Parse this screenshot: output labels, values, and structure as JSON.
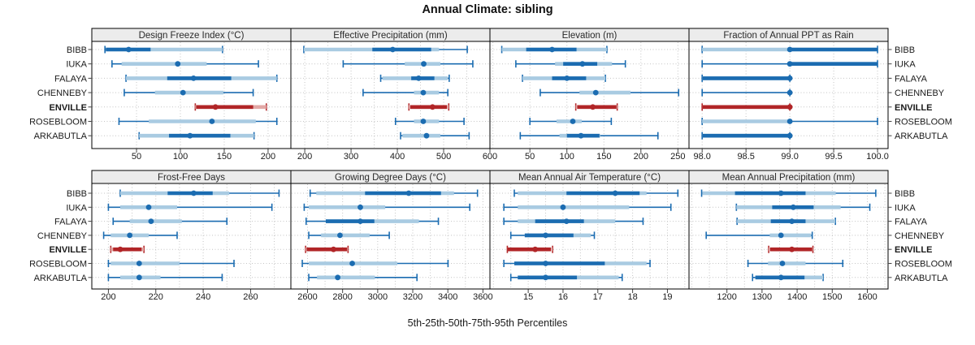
{
  "title": "Annual Climate: sibling",
  "caption": "5th-25th-50th-75th-95th Percentiles",
  "stations": [
    "BIBB",
    "IUKA",
    "FALAYA",
    "CHENNEBY",
    "ENVILLE",
    "ROSEBLOOM",
    "ARKABUTLA"
  ],
  "highlight_station": "ENVILLE",
  "colors": {
    "dark_blue": "#1b6cb1",
    "light_blue": "#a9cbe2",
    "dark_red": "#b12527",
    "light_red": "#e2a8a6",
    "grid_dots": "#c4c4c4",
    "strip_bg": "#ececec",
    "panel_border": "#000000",
    "tick": "#444444",
    "text": "#1a1a1a"
  },
  "chart_data": [
    {
      "type": "interval-dotplot",
      "title": "Design Freeze Index (°C)",
      "xlim": [
        -1,
        226
      ],
      "ticks": [
        50,
        100,
        150,
        200
      ],
      "tick_decimals": 0,
      "grid_step": 50,
      "rows": [
        {
          "station": "BIBB",
          "p": [
            14,
            15,
            41,
            66,
            148
          ],
          "band": [
            15,
            148
          ]
        },
        {
          "station": "IUKA",
          "p": [
            22,
            33,
            97,
            130,
            189
          ],
          "band": null
        },
        {
          "station": "FALAYA",
          "p": [
            38,
            85,
            115,
            158,
            210
          ],
          "band": [
            38,
            210
          ]
        },
        {
          "station": "CHENNEBY",
          "p": [
            36,
            71,
            103,
            149,
            183
          ],
          "band": null
        },
        {
          "station": "ENVILLE",
          "p": [
            117,
            118,
            140,
            183,
            198
          ],
          "band": [
            117,
            198
          ]
        },
        {
          "station": "ROSEBLOOM",
          "p": [
            30,
            64,
            136,
            186,
            210
          ],
          "band": null
        },
        {
          "station": "ARKABUTLA",
          "p": [
            53,
            87,
            111,
            157,
            184
          ],
          "band": [
            53,
            184
          ]
        }
      ]
    },
    {
      "type": "interval-dotplot",
      "title": "Effective Precipitation (mm)",
      "xlim": [
        170,
        600
      ],
      "ticks": [
        200,
        300,
        400,
        500,
        600
      ],
      "tick_decimals": 0,
      "grid_step": 50,
      "rows": [
        {
          "station": "BIBB",
          "p": [
            198,
            346,
            390,
            473,
            551
          ],
          "band": [
            198,
            490
          ]
        },
        {
          "station": "IUKA",
          "p": [
            283,
            416,
            457,
            493,
            563
          ],
          "band": null
        },
        {
          "station": "FALAYA",
          "p": [
            364,
            430,
            446,
            480,
            512
          ],
          "band": [
            368,
            509
          ]
        },
        {
          "station": "CHENNEBY",
          "p": [
            326,
            436,
            456,
            490,
            509
          ],
          "band": null
        },
        {
          "station": "ENVILLE",
          "p": [
            425,
            428,
            476,
            507,
            511
          ],
          "band": [
            425,
            511
          ]
        },
        {
          "station": "ROSEBLOOM",
          "p": [
            396,
            436,
            456,
            490,
            544
          ],
          "band": null
        },
        {
          "station": "ARKABUTLA",
          "p": [
            407,
            411,
            463,
            493,
            555
          ],
          "band": null
        }
      ]
    },
    {
      "type": "interval-dotplot",
      "title": "Elevation (m)",
      "xlim": [
        -4,
        265
      ],
      "ticks": [
        50,
        100,
        150,
        200,
        250
      ],
      "tick_decimals": 0,
      "grid_step": 50,
      "rows": [
        {
          "station": "BIBB",
          "p": [
            12,
            45,
            80,
            113,
            154
          ],
          "band": [
            12,
            154
          ]
        },
        {
          "station": "IUKA",
          "p": [
            31,
            95,
            121,
            141,
            179
          ],
          "band": [
            84,
            161
          ]
        },
        {
          "station": "FALAYA",
          "p": [
            40,
            80,
            100,
            126,
            152
          ],
          "band": [
            40,
            152
          ]
        },
        {
          "station": "CHENNEBY",
          "p": [
            64,
            117,
            139,
            186,
            251
          ],
          "band": null
        },
        {
          "station": "ENVILLE",
          "p": [
            112,
            114,
            135,
            167,
            168
          ],
          "band": [
            112,
            168
          ]
        },
        {
          "station": "ROSEBLOOM",
          "p": [
            50,
            86,
            108,
            120,
            160
          ],
          "band": null
        },
        {
          "station": "ARKABUTLA",
          "p": [
            37,
            100,
            119,
            144,
            223
          ],
          "band": [
            90,
            145
          ]
        }
      ]
    },
    {
      "type": "interval-dotplot",
      "title": "Fraction of Annual PPT as Rain",
      "xlim": [
        97.85,
        100.12
      ],
      "ticks": [
        98.0,
        98.5,
        99.0,
        99.5,
        100.0
      ],
      "tick_decimals": 1,
      "grid_step": 0.5,
      "rows": [
        {
          "station": "BIBB",
          "p": [
            98.0,
            99.0,
            99.0,
            100.0,
            100.0
          ],
          "band": [
            98.0,
            100.0
          ]
        },
        {
          "station": "IUKA",
          "p": [
            98.0,
            99.0,
            99.0,
            100.0,
            100.0
          ],
          "band": [
            99.0,
            100.0
          ]
        },
        {
          "station": "FALAYA",
          "p": [
            98.0,
            98.0,
            99.0,
            99.0,
            99.0
          ],
          "band": [
            98.0,
            99.0
          ]
        },
        {
          "station": "CHENNEBY",
          "p": [
            98.0,
            99.0,
            99.0,
            99.0,
            99.0
          ],
          "band": null
        },
        {
          "station": "ENVILLE",
          "p": [
            98.0,
            98.0,
            99.0,
            99.0,
            99.0
          ],
          "band": [
            98.0,
            99.0
          ]
        },
        {
          "station": "ROSEBLOOM",
          "p": [
            98.0,
            98.0,
            99.0,
            99.0,
            100.0
          ],
          "band": null
        },
        {
          "station": "ARKABUTLA",
          "p": [
            98.0,
            98.0,
            99.0,
            99.0,
            99.0
          ],
          "band": [
            98.0,
            99.0
          ]
        }
      ]
    },
    {
      "type": "interval-dotplot",
      "title": "Frost-Free Days",
      "xlim": [
        193,
        277
      ],
      "ticks": [
        200,
        220,
        240,
        260
      ],
      "tick_decimals": 0,
      "grid_step": 10,
      "rows": [
        {
          "station": "BIBB",
          "p": [
            205,
            225,
            236,
            244,
            272
          ],
          "band": [
            205,
            251
          ]
        },
        {
          "station": "IUKA",
          "p": [
            200,
            205,
            217,
            229,
            269
          ],
          "band": null
        },
        {
          "station": "FALAYA",
          "p": [
            202,
            209,
            218,
            231,
            250
          ],
          "band": null
        },
        {
          "station": "CHENNEBY",
          "p": [
            198,
            201,
            209,
            217,
            229
          ],
          "band": null
        },
        {
          "station": "ENVILLE",
          "p": [
            201,
            202,
            205,
            214,
            215
          ],
          "band": [
            201,
            215
          ]
        },
        {
          "station": "ROSEBLOOM",
          "p": [
            200,
            201,
            213,
            230,
            253
          ],
          "band": null
        },
        {
          "station": "ARKABUTLA",
          "p": [
            200,
            205,
            213,
            222,
            248
          ],
          "band": null
        }
      ]
    },
    {
      "type": "interval-dotplot",
      "title": "Growing Degree Days (°C)",
      "xlim": [
        2505,
        3640
      ],
      "ticks": [
        2600,
        2800,
        3000,
        3200,
        3400,
        3600
      ],
      "tick_decimals": 0,
      "grid_step": 100,
      "rows": [
        {
          "station": "BIBB",
          "p": [
            2615,
            2928,
            3177,
            3361,
            3569
          ],
          "band": [
            2650,
            3435
          ]
        },
        {
          "station": "IUKA",
          "p": [
            2581,
            2607,
            2901,
            3043,
            3525
          ],
          "band": null
        },
        {
          "station": "FALAYA",
          "p": [
            2592,
            2704,
            2901,
            2981,
            3346
          ],
          "band": [
            2704,
            3235
          ]
        },
        {
          "station": "CHENNEBY",
          "p": [
            2607,
            2677,
            2785,
            2954,
            3066
          ],
          "band": null
        },
        {
          "station": "ENVILLE",
          "p": [
            2589,
            2595,
            2748,
            2826,
            2831
          ],
          "band": [
            2589,
            2831
          ]
        },
        {
          "station": "ROSEBLOOM",
          "p": [
            2570,
            2607,
            2855,
            3112,
            3401
          ],
          "band": null
        },
        {
          "station": "ARKABUTLA",
          "p": [
            2607,
            2654,
            2772,
            2984,
            3224
          ],
          "band": null
        }
      ]
    },
    {
      "type": "interval-dotplot",
      "title": "Mean Annual Air Temperature (°C)",
      "xlim": [
        13.9,
        19.62
      ],
      "ticks": [
        15,
        16,
        17,
        18,
        19
      ],
      "tick_decimals": 0,
      "grid_step": 0.5,
      "rows": [
        {
          "station": "BIBB",
          "p": [
            14.6,
            16.1,
            17.5,
            18.2,
            19.3
          ],
          "band": [
            14.7,
            18.4
          ]
        },
        {
          "station": "IUKA",
          "p": [
            14.3,
            14.7,
            16.0,
            17.9,
            19.1
          ],
          "band": null
        },
        {
          "station": "FALAYA",
          "p": [
            14.3,
            15.2,
            16.1,
            16.6,
            18.3
          ],
          "band": [
            14.7,
            17.5
          ]
        },
        {
          "station": "CHENNEBY",
          "p": [
            14.5,
            14.9,
            15.5,
            16.3,
            16.9
          ],
          "band": [
            14.9,
            16.8
          ]
        },
        {
          "station": "ENVILLE",
          "p": [
            14.4,
            14.4,
            15.2,
            15.65,
            15.7
          ],
          "band": [
            14.4,
            15.7
          ]
        },
        {
          "station": "ROSEBLOOM",
          "p": [
            14.3,
            14.6,
            15.5,
            17.2,
            18.5
          ],
          "band": [
            14.6,
            18.4
          ]
        },
        {
          "station": "ARKABUTLA",
          "p": [
            14.5,
            14.7,
            15.5,
            16.4,
            17.7
          ],
          "band": [
            14.7,
            17.6
          ]
        }
      ]
    },
    {
      "type": "interval-dotplot",
      "title": "Mean Annual Precipitation (mm)",
      "xlim": [
        1092,
        1659
      ],
      "ticks": [
        1200,
        1300,
        1400,
        1500,
        1600
      ],
      "tick_decimals": 0,
      "grid_step": 50,
      "rows": [
        {
          "station": "BIBB",
          "p": [
            1128,
            1223,
            1354,
            1424,
            1624
          ],
          "band": [
            1130,
            1510
          ]
        },
        {
          "station": "IUKA",
          "p": [
            1227,
            1329,
            1389,
            1447,
            1607
          ],
          "band": [
            1227,
            1524
          ]
        },
        {
          "station": "FALAYA",
          "p": [
            1229,
            1325,
            1385,
            1424,
            1509
          ],
          "band": [
            1229,
            1509
          ]
        },
        {
          "station": "CHENNEBY",
          "p": [
            1141,
            1322,
            1354,
            1440,
            1443
          ],
          "band": null
        },
        {
          "station": "ENVILLE",
          "p": [
            1319,
            1323,
            1385,
            1443,
            1445
          ],
          "band": [
            1319,
            1445
          ]
        },
        {
          "station": "ROSEBLOOM",
          "p": [
            1260,
            1317,
            1358,
            1424,
            1530
          ],
          "band": null
        },
        {
          "station": "ARKABUTLA",
          "p": [
            1273,
            1281,
            1354,
            1421,
            1474
          ],
          "band": [
            1281,
            1474
          ]
        }
      ]
    }
  ]
}
